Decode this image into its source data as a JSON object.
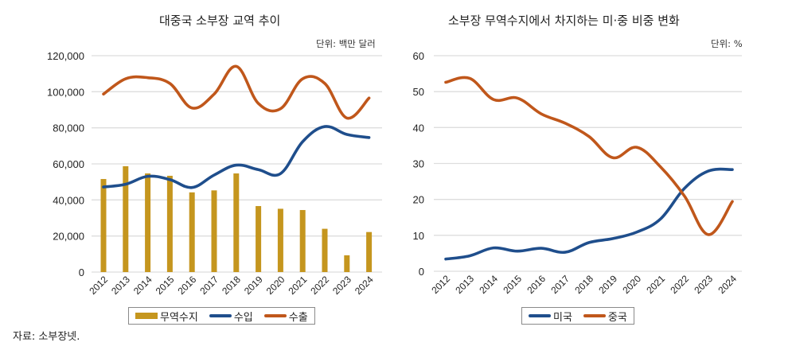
{
  "source": "자료: 소부장넷.",
  "colors": {
    "balance": "#C5961E",
    "import": "#1F4E8C",
    "export": "#C0571B",
    "us": "#1F4E8C",
    "china": "#C0571B",
    "grid": "#dddddd"
  },
  "chart_data": [
    {
      "type": "bar+line",
      "title": "대중국 소부장 교역 추이",
      "unit": "단위: 백만 달러",
      "categories": [
        "2012",
        "2013",
        "2014",
        "2015",
        "2016",
        "2017",
        "2018",
        "2019",
        "2020",
        "2021",
        "2022",
        "2023",
        "2024"
      ],
      "ylim": [
        0,
        120000
      ],
      "yticks": [
        0,
        20000,
        40000,
        60000,
        80000,
        100000,
        120000
      ],
      "ytick_labels": [
        "0",
        "20,000",
        "40,000",
        "60,000",
        "80,000",
        "100,000",
        "120,000"
      ],
      "grid": true,
      "legend_position": "bottom",
      "series": [
        {
          "name": "무역수지",
          "kind": "bar",
          "color_key": "balance",
          "values": [
            51600,
            58700,
            54700,
            53400,
            44200,
            45300,
            54700,
            36600,
            35100,
            34400,
            24000,
            9300,
            22200
          ]
        },
        {
          "name": "수입",
          "kind": "line",
          "color_key": "import",
          "values": [
            47200,
            48700,
            53100,
            51300,
            46900,
            53800,
            59300,
            56800,
            54600,
            72300,
            80700,
            76300,
            74600
          ]
        },
        {
          "name": "수출",
          "kind": "line",
          "color_key": "export",
          "values": [
            98700,
            107200,
            107800,
            104600,
            91000,
            98700,
            114100,
            93500,
            90600,
            107200,
            104600,
            85400,
            96500
          ]
        }
      ]
    },
    {
      "type": "line",
      "title": "소부장 무역수지에서 차지하는 미·중 비중 변화",
      "unit": "단위: %",
      "categories": [
        "2012",
        "2013",
        "2014",
        "2015",
        "2016",
        "2017",
        "2018",
        "2019",
        "2020",
        "2021",
        "2022",
        "2023",
        "2024"
      ],
      "ylim": [
        0,
        60
      ],
      "yticks": [
        0,
        10,
        20,
        30,
        40,
        50,
        60
      ],
      "ytick_labels": [
        "0",
        "10",
        "20",
        "30",
        "40",
        "50",
        "60"
      ],
      "grid": true,
      "legend_position": "bottom",
      "series": [
        {
          "name": "미국",
          "kind": "line",
          "color_key": "us",
          "values": [
            3.4,
            4.3,
            6.5,
            5.6,
            6.4,
            5.3,
            8.0,
            9.1,
            10.9,
            14.6,
            23.1,
            27.9,
            28.3
          ]
        },
        {
          "name": "중국",
          "kind": "line",
          "color_key": "china",
          "values": [
            52.6,
            53.7,
            47.8,
            48.2,
            43.8,
            41.2,
            37.5,
            31.6,
            34.5,
            29.0,
            20.9,
            10.2,
            19.4
          ]
        }
      ]
    }
  ]
}
